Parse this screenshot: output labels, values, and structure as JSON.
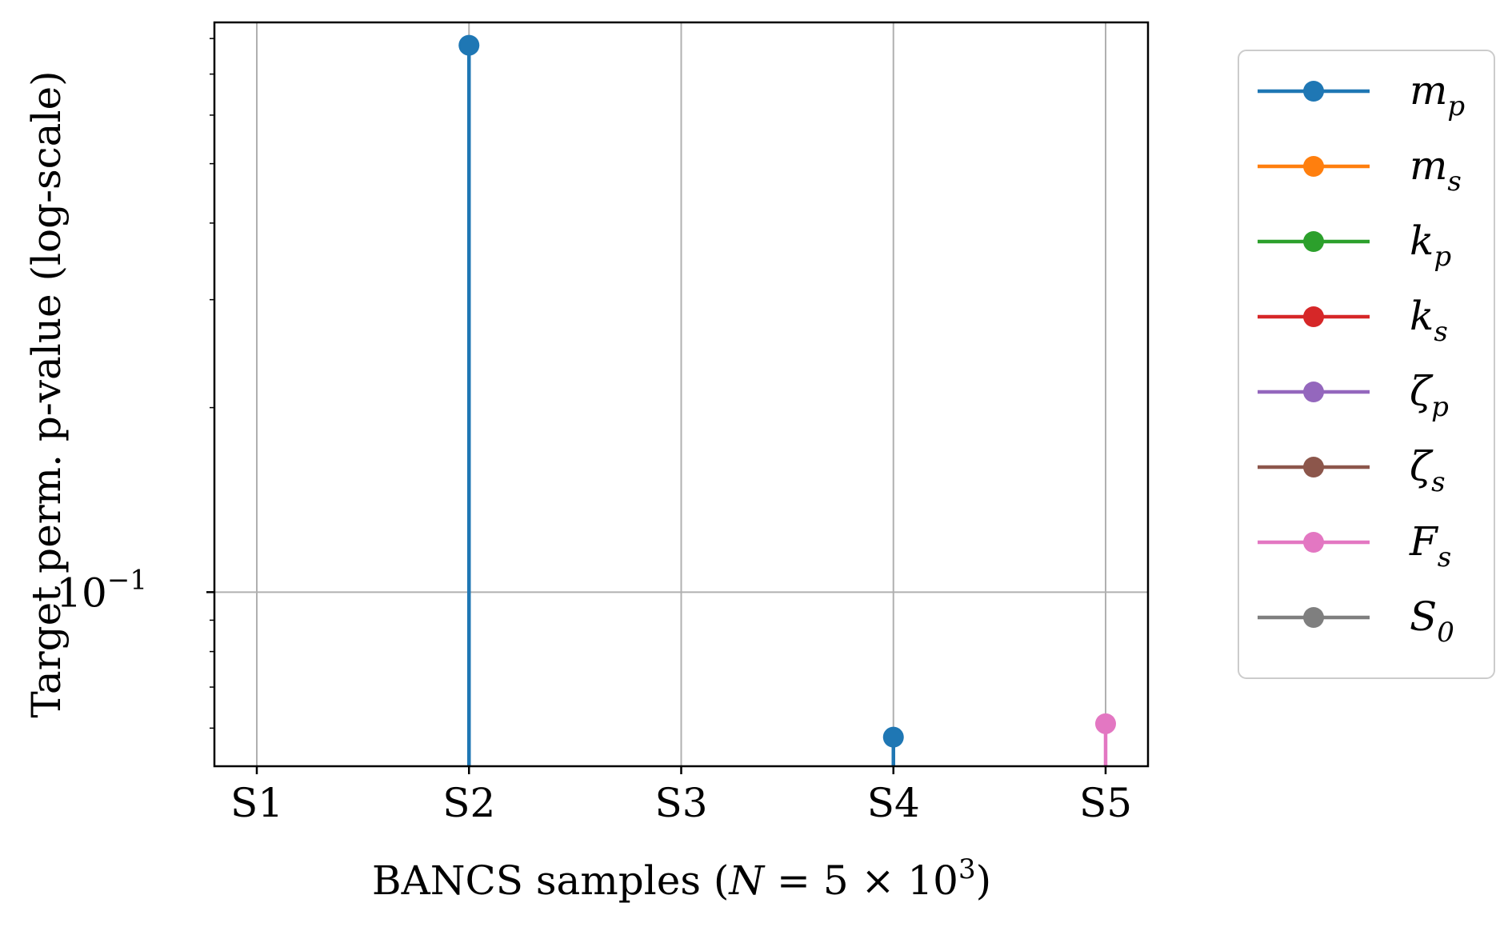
{
  "chart_data": {
    "type": "stem",
    "title": "",
    "xlabel": "BANCS samples (N = 5 × 10^3)",
    "xlabel_parts": {
      "prefix": "BANCS samples (",
      "var": "N",
      "eq": " = 5 × 10",
      "exp": "3",
      "suffix": ")"
    },
    "ylabel": "Target perm. p-value (log-scale)",
    "y_scale": "log",
    "ylim": [
      0.052,
      0.85
    ],
    "y_ticks": [
      {
        "value": 0.1,
        "base": "10",
        "exp": "−1"
      }
    ],
    "categories": [
      "S1",
      "S2",
      "S3",
      "S4",
      "S5"
    ],
    "grid": true,
    "legend_position": "outside-right",
    "series": [
      {
        "name": "m_p",
        "base": "m",
        "sub": "p",
        "color": "#1f77b4",
        "values": [
          null,
          0.78,
          null,
          0.058,
          null
        ]
      },
      {
        "name": "m_s",
        "base": "m",
        "sub": "s",
        "color": "#ff7f0e",
        "values": [
          null,
          null,
          null,
          null,
          null
        ]
      },
      {
        "name": "k_p",
        "base": "k",
        "sub": "p",
        "color": "#2ca02c",
        "values": [
          null,
          null,
          null,
          null,
          null
        ]
      },
      {
        "name": "k_s",
        "base": "k",
        "sub": "s",
        "color": "#d62728",
        "values": [
          null,
          null,
          null,
          null,
          null
        ]
      },
      {
        "name": "ζ_p",
        "base": "ζ",
        "sub": "p",
        "color": "#9467bd",
        "values": [
          null,
          null,
          null,
          null,
          null
        ]
      },
      {
        "name": "ζ_s",
        "base": "ζ",
        "sub": "s",
        "color": "#8c564b",
        "values": [
          null,
          null,
          null,
          null,
          null
        ]
      },
      {
        "name": "F_s",
        "base": "F",
        "sub": "s",
        "color": "#e377c2",
        "values": [
          null,
          null,
          null,
          null,
          0.061
        ]
      },
      {
        "name": "S_0",
        "base": "S",
        "sub": "0",
        "color": "#7f7f7f",
        "values": [
          null,
          null,
          null,
          null,
          null
        ]
      }
    ]
  }
}
